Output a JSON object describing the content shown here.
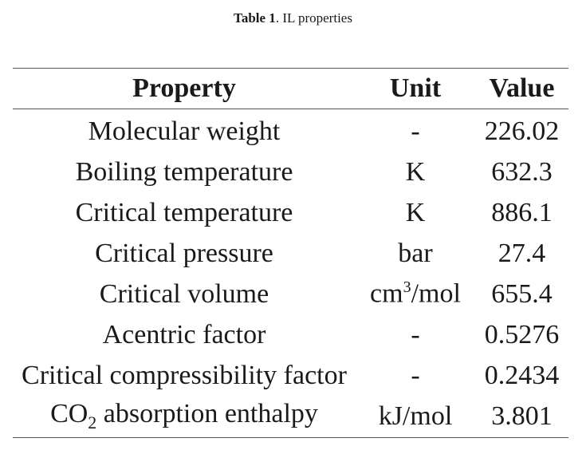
{
  "caption": {
    "label": "Table 1",
    "separator": ".",
    "text": " IL properties"
  },
  "table": {
    "headers": [
      "Property",
      "Unit",
      "Value"
    ],
    "rows": [
      {
        "property": "Molecular weight",
        "unit": "-",
        "value": "226.02"
      },
      {
        "property": "Boiling temperature",
        "unit": "K",
        "value": "632.3"
      },
      {
        "property": "Critical temperature",
        "unit": "K",
        "value": "886.1"
      },
      {
        "property": "Critical pressure",
        "unit": "bar",
        "value": "27.4"
      },
      {
        "property": "Critical volume",
        "unit_base": "cm",
        "unit_sup": "3",
        "unit_rest": "/mol",
        "value": "655.4"
      },
      {
        "property": "Acentric factor",
        "unit": "-",
        "value": "0.5276"
      },
      {
        "property": "Critical compressibility factor",
        "unit": "-",
        "value": "0.2434"
      },
      {
        "property_base": "CO",
        "property_sub": "2",
        "property_rest": " absorption enthalpy",
        "unit": "kJ/mol",
        "value": "3.801"
      }
    ]
  }
}
